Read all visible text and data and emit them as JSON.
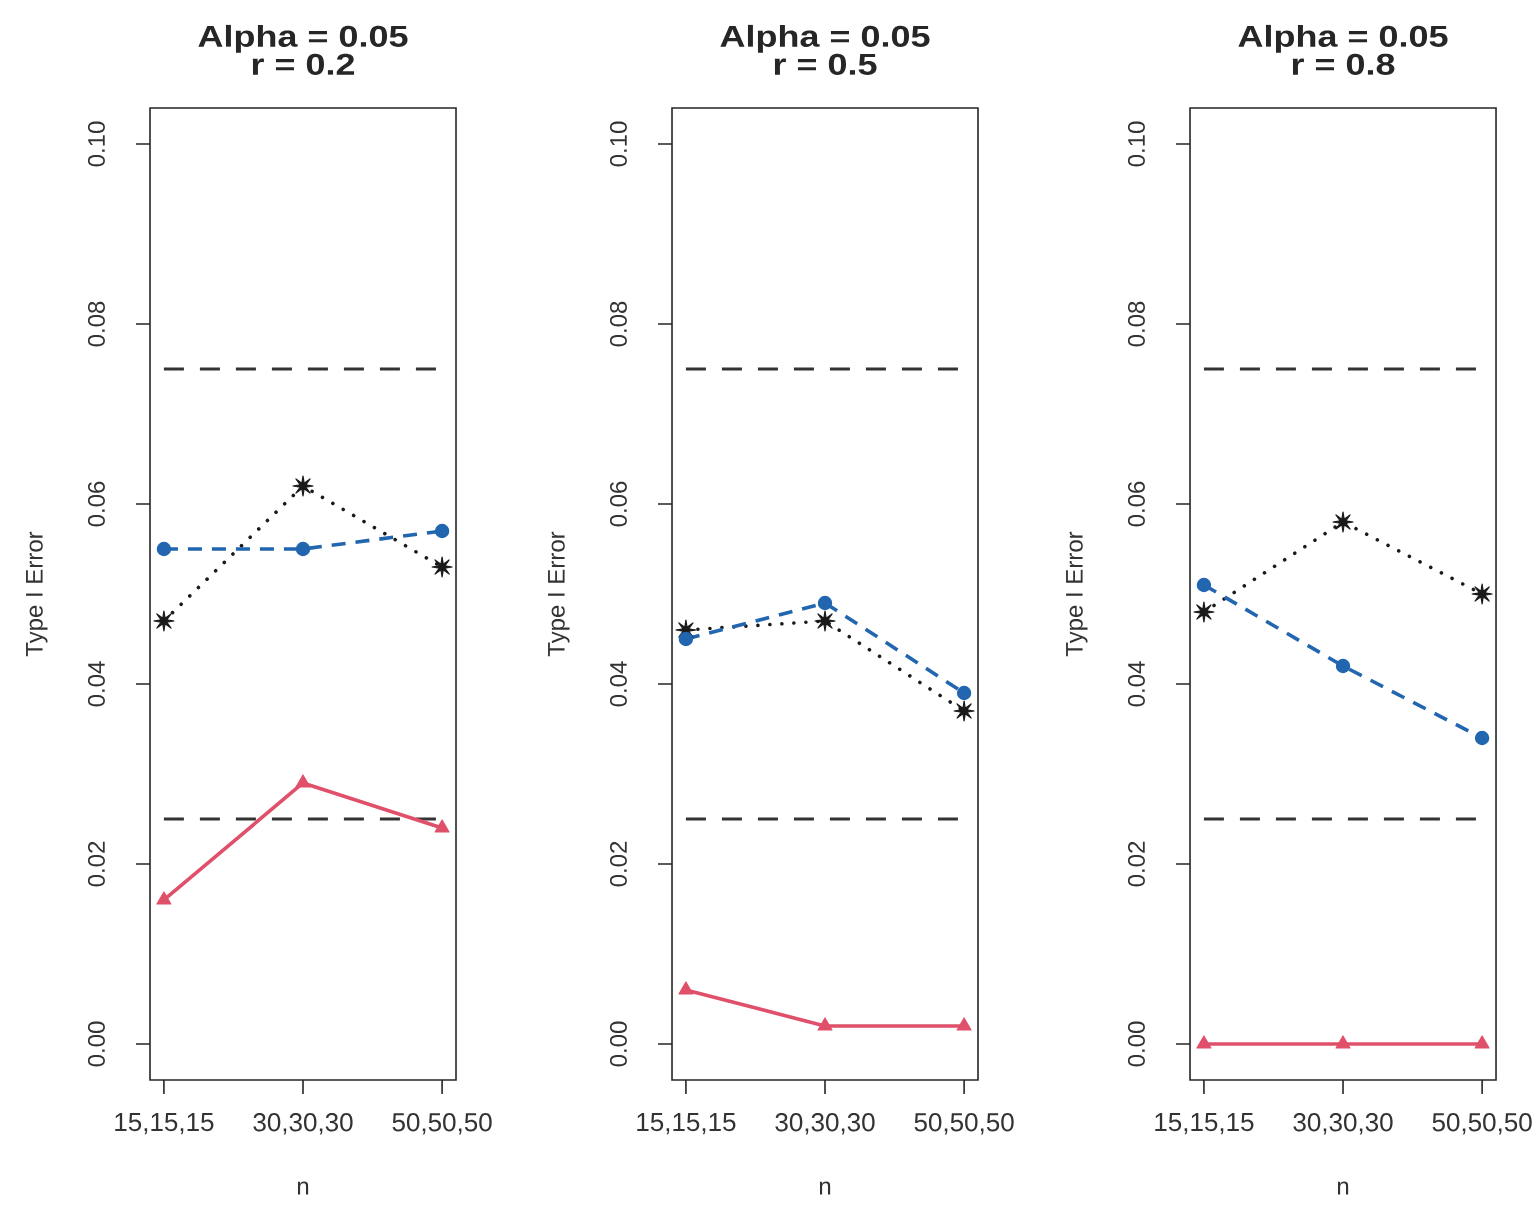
{
  "chart_data": [
    {
      "type": "line",
      "title": "Alpha = 0.05",
      "subtitle": "r = 0.2",
      "xlabel": "n",
      "ylabel": "Type I Error",
      "categories": [
        "15,15,15",
        "30,30,30",
        "50,50,50"
      ],
      "ylim": [
        -0.004,
        0.104
      ],
      "yticks": [
        {
          "value": 0,
          "label": "0.00"
        },
        {
          "value": 0.02,
          "label": "0.02"
        },
        {
          "value": 0.04,
          "label": "0.04"
        },
        {
          "value": 0.06,
          "label": "0.06"
        },
        {
          "value": 0.08,
          "label": "0.08"
        },
        {
          "value": 0.1,
          "label": "0.10"
        }
      ],
      "series": [
        {
          "color": "#1a1a1a",
          "marker": "star",
          "line_style": "dotted",
          "values": [
            0.047,
            0.062,
            0.053
          ]
        },
        {
          "color": "#2266b0",
          "marker": "circle",
          "line_style": "dashed",
          "values": [
            0.055,
            0.055,
            0.057
          ]
        },
        {
          "color": "#e0506a",
          "marker": "triangle",
          "line_style": "solid",
          "values": [
            0.016,
            0.029,
            0.024
          ]
        }
      ],
      "ref_lines": [
        {
          "axis": "y",
          "value": 0.025,
          "color": "#333333",
          "line_style": "dashed"
        },
        {
          "axis": "y",
          "value": 0.075,
          "color": "#333333",
          "line_style": "dashed"
        }
      ]
    },
    {
      "type": "line",
      "title": "Alpha = 0.05",
      "subtitle": "r = 0.5",
      "xlabel": "n",
      "ylabel": "Type I Error",
      "categories": [
        "15,15,15",
        "30,30,30",
        "50,50,50"
      ],
      "ylim": [
        -0.004,
        0.104
      ],
      "yticks": [
        {
          "value": 0,
          "label": "0.00"
        },
        {
          "value": 0.02,
          "label": "0.02"
        },
        {
          "value": 0.04,
          "label": "0.04"
        },
        {
          "value": 0.06,
          "label": "0.06"
        },
        {
          "value": 0.08,
          "label": "0.08"
        },
        {
          "value": 0.1,
          "label": "0.10"
        }
      ],
      "series": [
        {
          "color": "#1a1a1a",
          "marker": "star",
          "line_style": "dotted",
          "values": [
            0.046,
            0.047,
            0.037
          ]
        },
        {
          "color": "#2266b0",
          "marker": "circle",
          "line_style": "dashed",
          "values": [
            0.045,
            0.049,
            0.039
          ]
        },
        {
          "color": "#e0506a",
          "marker": "triangle",
          "line_style": "solid",
          "values": [
            0.006,
            0.002,
            0.002
          ]
        }
      ],
      "ref_lines": [
        {
          "axis": "y",
          "value": 0.025,
          "color": "#333333",
          "line_style": "dashed"
        },
        {
          "axis": "y",
          "value": 0.075,
          "color": "#333333",
          "line_style": "dashed"
        }
      ]
    },
    {
      "type": "line",
      "title": "Alpha = 0.05",
      "subtitle": "r = 0.8",
      "xlabel": "n",
      "ylabel": "Type I Error",
      "categories": [
        "15,15,15",
        "30,30,30",
        "50,50,50"
      ],
      "ylim": [
        -0.004,
        0.104
      ],
      "yticks": [
        {
          "value": 0,
          "label": "0.00"
        },
        {
          "value": 0.02,
          "label": "0.02"
        },
        {
          "value": 0.04,
          "label": "0.04"
        },
        {
          "value": 0.06,
          "label": "0.06"
        },
        {
          "value": 0.08,
          "label": "0.08"
        },
        {
          "value": 0.1,
          "label": "0.10"
        }
      ],
      "series": [
        {
          "color": "#1a1a1a",
          "marker": "star",
          "line_style": "dotted",
          "values": [
            0.048,
            0.058,
            0.05
          ]
        },
        {
          "color": "#2266b0",
          "marker": "circle",
          "line_style": "dashed",
          "values": [
            0.051,
            0.042,
            0.034
          ]
        },
        {
          "color": "#e0506a",
          "marker": "triangle",
          "line_style": "solid",
          "values": [
            0,
            0,
            0
          ]
        }
      ],
      "ref_lines": [
        {
          "axis": "y",
          "value": 0.025,
          "color": "#333333",
          "line_style": "dashed"
        },
        {
          "axis": "y",
          "value": 0.075,
          "color": "#333333",
          "line_style": "dashed"
        }
      ]
    }
  ]
}
